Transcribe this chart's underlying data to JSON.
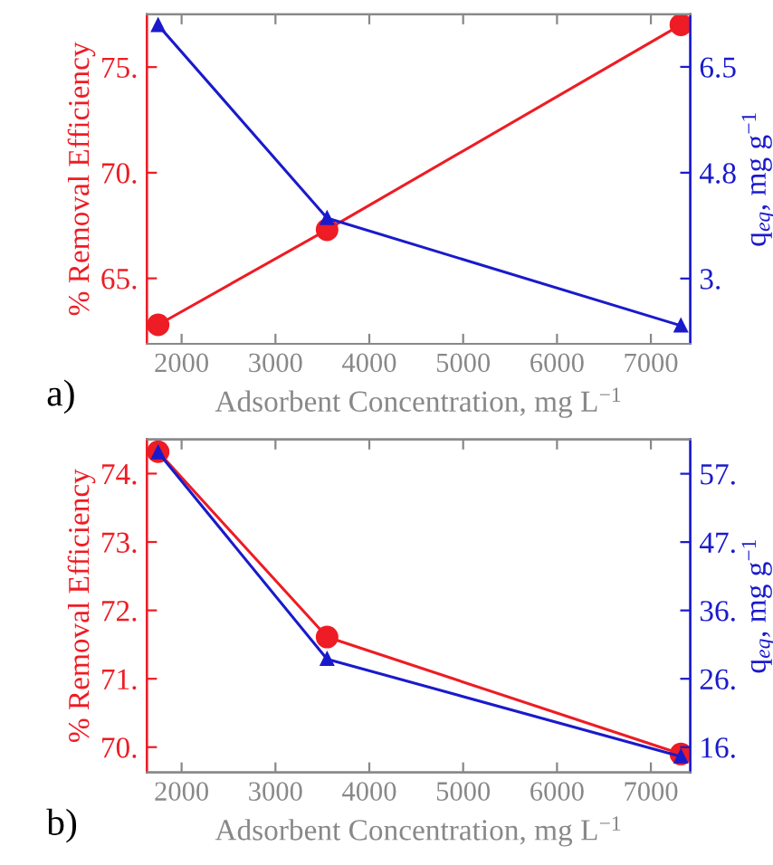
{
  "chart_data": [
    {
      "type": "line",
      "xlabel": "Adsorbent Concentration, mg L$^{−1}$",
      "ylabel": "% Removal Efficiency",
      "y2label": "q$_{eq}$, mg g$^{−1}$",
      "annotations": [
        "a)"
      ],
      "x": [
        1750,
        3550,
        7320
      ],
      "xlim": [
        1630,
        7420
      ],
      "xticks": [
        2000,
        3000,
        4000,
        5000,
        6000,
        7000
      ],
      "ylim": [
        61.9,
        77.5
      ],
      "yticks": [
        {
          "value": 65,
          "label": "65."
        },
        {
          "value": 70,
          "label": "70."
        },
        {
          "value": 75,
          "label": "75."
        }
      ],
      "y2lim": [
        1.92,
        7.37
      ],
      "y2ticks": [
        {
          "value": 3.0,
          "label": "3."
        },
        {
          "value": 4.75,
          "label": "4.8"
        },
        {
          "value": 6.5,
          "label": "6.5"
        }
      ],
      "grid": false,
      "legend": false,
      "line_style": "solid",
      "series": [
        {
          "color": "#ee1c24",
          "marker": "circle",
          "values": [
            62.8,
            67.3,
            77.0
          ]
        },
        {
          "color": "#1a1acc",
          "marker": "triangle",
          "axis": "y2",
          "values": [
            7.19,
            4.0,
            2.22
          ]
        }
      ]
    },
    {
      "type": "line",
      "xlabel": "Adsorbent Concentration, mg L$^{−1}$",
      "ylabel": "% Removal Efficiency",
      "y2label": "q$_{eq}$, mg g$^{−1}$",
      "annotations": [
        "b)"
      ],
      "x": [
        1750,
        3550,
        7320
      ],
      "xlim": [
        1630,
        7420
      ],
      "xticks": [
        2000,
        3000,
        4000,
        5000,
        6000,
        7000
      ],
      "ylim": [
        69.63,
        74.5
      ],
      "yticks": [
        {
          "value": 70,
          "label": "70."
        },
        {
          "value": 71,
          "label": "71."
        },
        {
          "value": 72,
          "label": "72."
        },
        {
          "value": 73,
          "label": "73."
        },
        {
          "value": 74,
          "label": "74."
        }
      ],
      "y2lim": [
        12.2,
        62.15
      ],
      "y2ticks": [
        {
          "value": 16,
          "label": "16."
        },
        {
          "value": 26.25,
          "label": "26."
        },
        {
          "value": 36.5,
          "label": "36."
        },
        {
          "value": 46.75,
          "label": "47."
        },
        {
          "value": 57,
          "label": "57."
        }
      ],
      "grid": false,
      "legend": false,
      "line_style": "solid",
      "series": [
        {
          "color": "#ee1c24",
          "marker": "circle",
          "values": [
            74.32,
            71.61,
            69.9
          ]
        },
        {
          "color": "#1a1acc",
          "marker": "triangle",
          "axis": "y2",
          "values": [
            60.2,
            29.2,
            14.6
          ]
        }
      ]
    }
  ]
}
